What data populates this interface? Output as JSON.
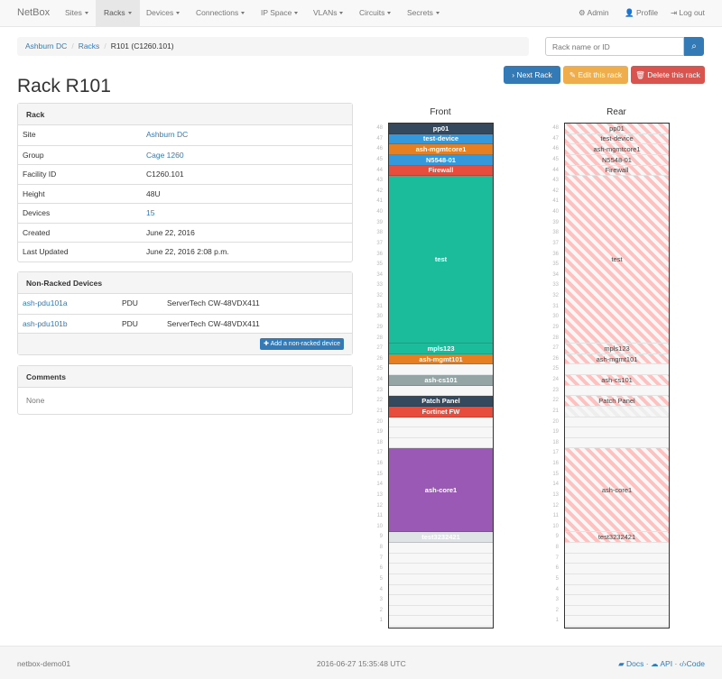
{
  "nav": {
    "brand": "NetBox",
    "items": [
      {
        "label": "Sites"
      },
      {
        "label": "Racks",
        "active": true
      },
      {
        "label": "Devices"
      },
      {
        "label": "Connections"
      },
      {
        "label": "IP Space"
      },
      {
        "label": "VLANs"
      },
      {
        "label": "Circuits"
      },
      {
        "label": "Secrets"
      }
    ],
    "right": {
      "admin": "Admin",
      "profile": "Profile",
      "logout": "Log out"
    }
  },
  "breadcrumb": {
    "site": "Ashburn DC",
    "racks": "Racks",
    "current": "R101 (C1260.101)"
  },
  "search": {
    "placeholder": "Rack name or ID"
  },
  "buttons": {
    "next": "Next Rack",
    "edit": "Edit this rack",
    "delete": "Delete this rack"
  },
  "title": "Rack R101",
  "rack_panel": {
    "heading": "Rack",
    "rows": [
      {
        "k": "Site",
        "v": "Ashburn DC",
        "link": true
      },
      {
        "k": "Group",
        "v": "Cage 1260",
        "link": true
      },
      {
        "k": "Facility ID",
        "v": "C1260.101"
      },
      {
        "k": "Height",
        "v": "48U"
      },
      {
        "k": "Devices",
        "v": "15",
        "link": true
      },
      {
        "k": "Created",
        "v": "June 22, 2016"
      },
      {
        "k": "Last Updated",
        "v": "June 22, 2016 2:08 p.m."
      }
    ]
  },
  "nonracked": {
    "heading": "Non-Racked Devices",
    "rows": [
      {
        "name": "ash-pdu101a",
        "role": "PDU",
        "type": "ServerTech CW-48VDX411"
      },
      {
        "name": "ash-pdu101b",
        "role": "PDU",
        "type": "ServerTech CW-48VDX411"
      }
    ],
    "add_label": "Add a non-racked device"
  },
  "comments": {
    "heading": "Comments",
    "body": "None"
  },
  "rack": {
    "front_label": "Front",
    "rear_label": "Rear",
    "height": 48,
    "devices": [
      {
        "name": "pp01",
        "top": 48,
        "u": 1,
        "color": "#34495e"
      },
      {
        "name": "test-device",
        "top": 47,
        "u": 1,
        "color": "#3498db"
      },
      {
        "name": "ash-mgmtcore1",
        "top": 46,
        "u": 1,
        "color": "#e67e22"
      },
      {
        "name": "N5548-01",
        "top": 45,
        "u": 1,
        "color": "#3498db"
      },
      {
        "name": "Firewall",
        "top": 44,
        "u": 1,
        "color": "#e74c3c"
      },
      {
        "name": "test",
        "top": 43,
        "u": 16,
        "color": "#1abc9c"
      },
      {
        "name": "mpls123",
        "top": 27,
        "u": 1,
        "color": "#1abc9c"
      },
      {
        "name": "ash-mgmt101",
        "top": 26,
        "u": 1,
        "color": "#e67e22"
      },
      {
        "name": "ash-cs101",
        "top": 24,
        "u": 1,
        "color": "#95a5a6"
      },
      {
        "name": "Patch Panel",
        "top": 22,
        "u": 1,
        "color": "#34495e"
      },
      {
        "name": "Fortinet FW",
        "top": 21,
        "u": 1,
        "color": "#e74c3c",
        "rear_faint": true,
        "rear_hide_label": true
      },
      {
        "name": "ash-core1",
        "top": 17,
        "u": 8,
        "color": "#9b59b6"
      },
      {
        "name": "test3232421",
        "top": 9,
        "u": 1,
        "color": "#dfe3e6"
      }
    ]
  },
  "footer": {
    "host": "netbox-demo01",
    "time": "2016-06-27 15:35:48 UTC",
    "docs": "Docs",
    "api": "API",
    "code": "Code"
  }
}
